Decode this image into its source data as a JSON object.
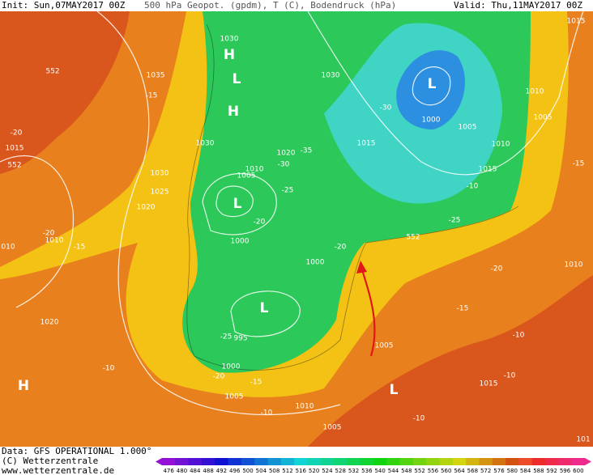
{
  "header": {
    "init": "Init: Sun,07MAY2017 00Z",
    "title": "500 hPa Geopot. (gpdm), T (C), Bodendruck (hPa)",
    "valid": "Valid: Thu,11MAY2017 00Z"
  },
  "footer": {
    "data_source": "Data: GFS OPERATIONAL 1.000°",
    "copyright": "(C) Wetterzentrale",
    "url": "www.wetterzentrale.de"
  },
  "legend": {
    "labels": [
      476,
      480,
      484,
      488,
      492,
      496,
      500,
      504,
      508,
      512,
      516,
      520,
      524,
      528,
      532,
      536,
      540,
      544,
      548,
      552,
      556,
      560,
      564,
      568,
      572,
      576,
      580,
      584,
      588,
      592,
      596,
      600
    ]
  },
  "map": {
    "labels": [
      "1030",
      "H",
      "L",
      "H",
      "552",
      "1035",
      "-15",
      "-20",
      "1015",
      "552",
      "1030",
      "1025",
      "1020",
      "L",
      "-20",
      "1000",
      "1010",
      "1005",
      "-30",
      "1020",
      "-25",
      "1030",
      "1030",
      "-30",
      "L",
      "1000",
      "1005",
      "1010",
      "1005",
      "1010",
      "1015",
      "1015",
      "-35",
      "-10",
      "-25",
      "552",
      "1015",
      "-15",
      "-20",
      "1000",
      "L",
      "-25",
      "995",
      "-20",
      "1010",
      "-15",
      "-10",
      "1005",
      "1000",
      "-20",
      "-15",
      "1005",
      "1010",
      "-10",
      "-10",
      "1015",
      "L",
      "-10",
      "1005",
      "-10",
      "H",
      "1020",
      "-20",
      "1010",
      "-15",
      "010",
      "101"
    ]
  }
}
